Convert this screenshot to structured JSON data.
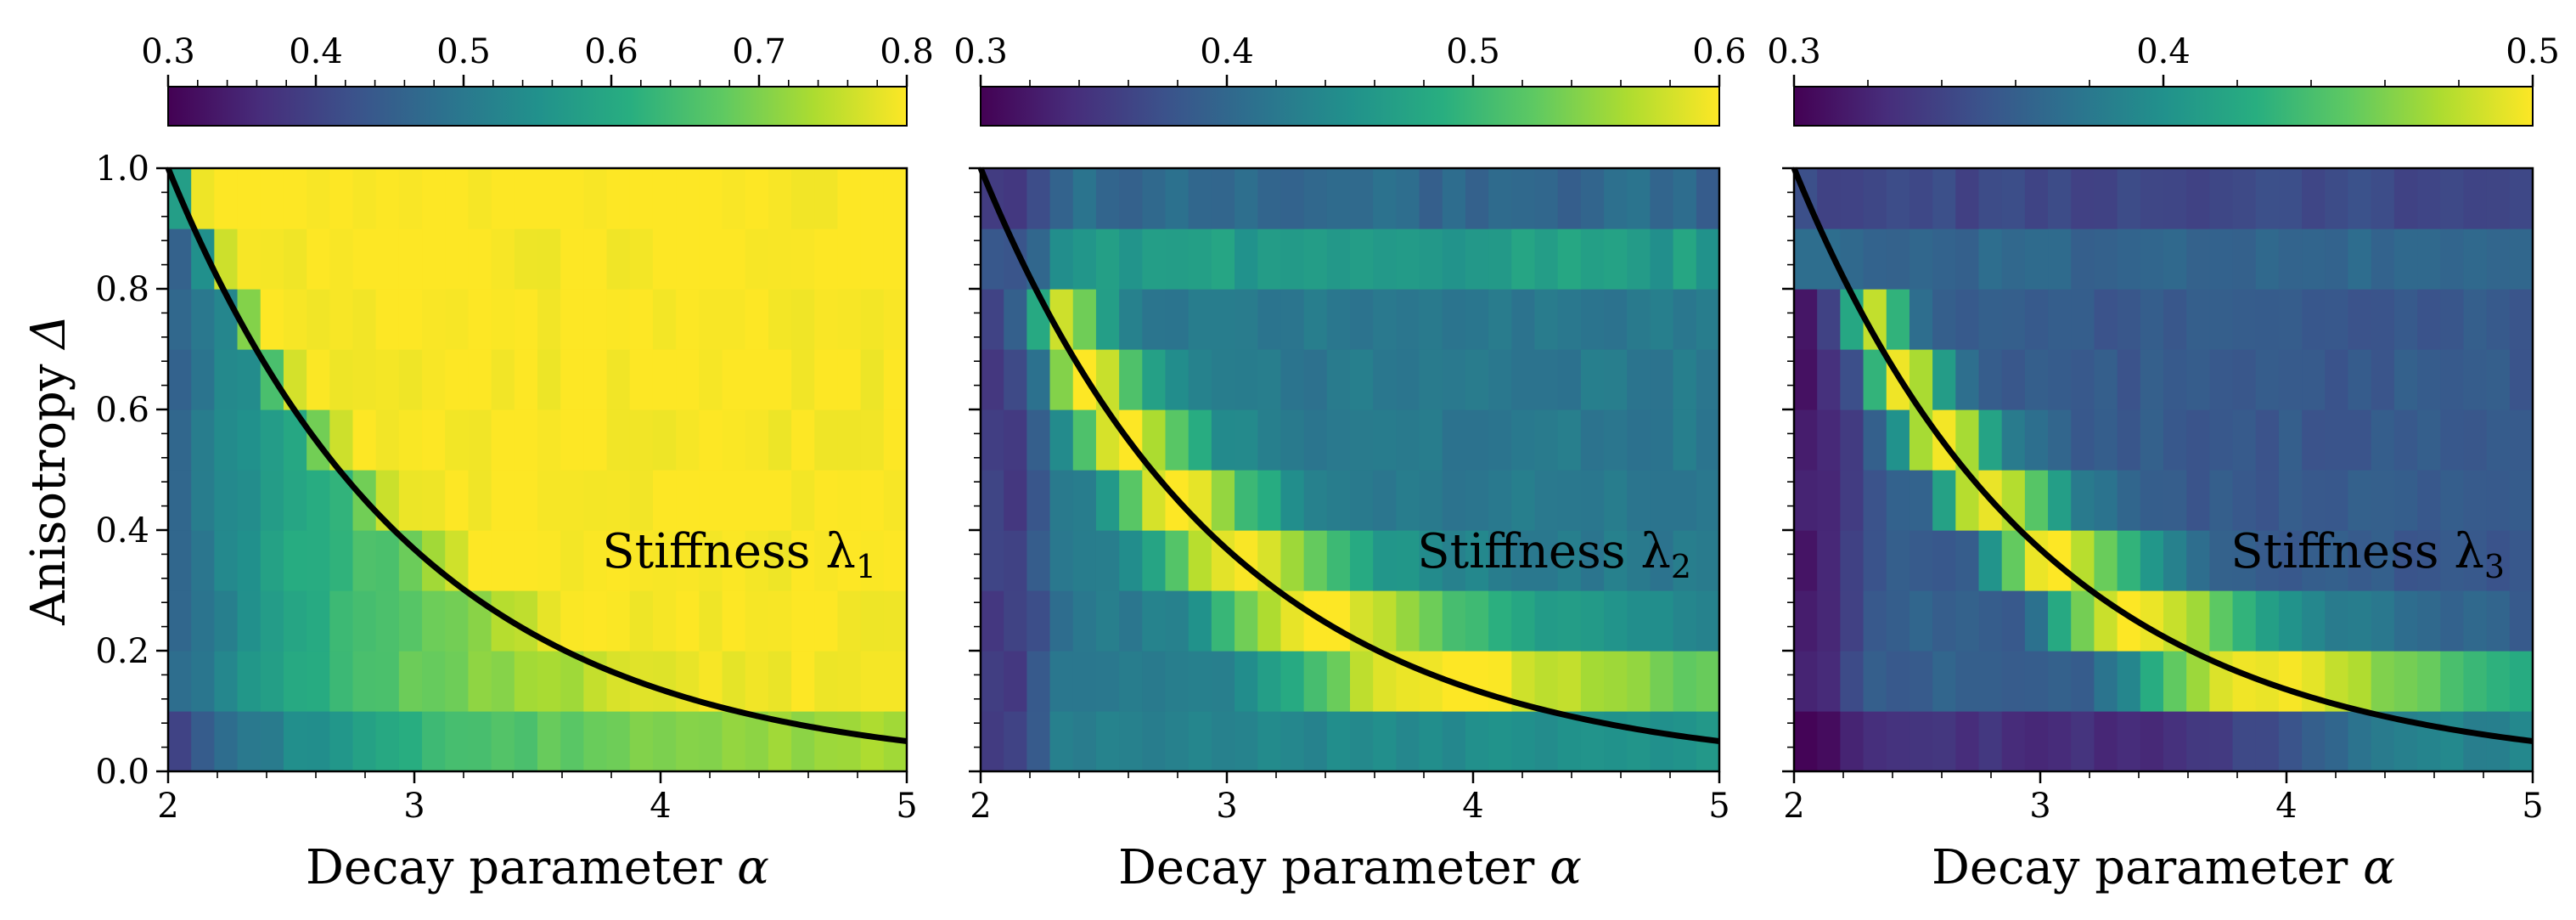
{
  "chart_data": [
    {
      "type": "heatmap",
      "label_text": "Stiffness λ",
      "label_sub": "1",
      "xlabel": "Decay parameter",
      "xlabel_sym": "α",
      "ylabel": "Anisotropy",
      "ylabel_sym": "Δ",
      "xlim": [
        2,
        5
      ],
      "ylim": [
        0.0,
        1.0
      ],
      "xticks": [
        "2",
        "3",
        "4",
        "5"
      ],
      "yticks": [
        "0.0",
        "0.2",
        "0.4",
        "0.6",
        "0.8",
        "1.0"
      ],
      "colorbar": {
        "range": [
          0.3,
          0.8
        ],
        "ticks": [
          "0.3",
          "0.4",
          "0.5",
          "0.6",
          "0.7",
          "0.8"
        ],
        "colormap": "viridis"
      },
      "curve": "Δ = 0.05^((α−2)/3)",
      "colormap_stops": [
        "#440154",
        "#472d7b",
        "#3b528b",
        "#2c728e",
        "#21918c",
        "#28ae80",
        "#5ec962",
        "#addc30",
        "#fde725"
      ]
    },
    {
      "type": "heatmap",
      "label_text": "Stiffness λ",
      "label_sub": "2",
      "xlabel": "Decay parameter",
      "xlabel_sym": "α",
      "xlim": [
        2,
        5
      ],
      "ylim": [
        0.0,
        1.0
      ],
      "xticks": [
        "2",
        "3",
        "4",
        "5"
      ],
      "colorbar": {
        "range": [
          0.3,
          0.6
        ],
        "ticks": [
          "0.3",
          "0.4",
          "0.5",
          "0.6"
        ],
        "colormap": "viridis"
      },
      "curve": "Δ = 0.05^((α−2)/3)"
    },
    {
      "type": "heatmap",
      "label_text": "Stiffness λ",
      "label_sub": "3",
      "xlabel": "Decay parameter",
      "xlabel_sym": "α",
      "xlim": [
        2,
        5
      ],
      "ylim": [
        0.0,
        1.0
      ],
      "xticks": [
        "2",
        "3",
        "4",
        "5"
      ],
      "colorbar": {
        "range": [
          0.3,
          0.5
        ],
        "ticks": [
          "0.3",
          "0.4",
          "0.5"
        ],
        "colormap": "viridis"
      },
      "curve": "Δ = 0.05^((α−2)/3)"
    }
  ]
}
